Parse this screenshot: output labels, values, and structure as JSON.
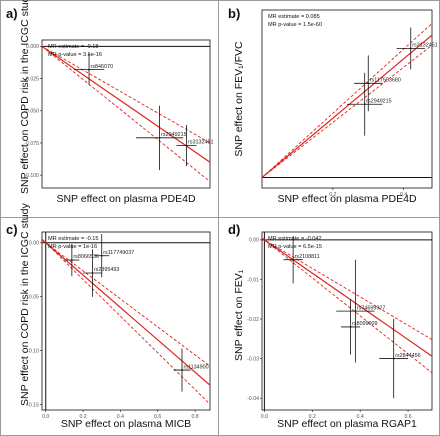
{
  "colors": {
    "fit": "#e0231a",
    "ci": "#e0231a",
    "error_bar": "#111111",
    "axis": "#111111",
    "tick": "#555555",
    "grid": "#9a9a9a"
  },
  "chart_data": [
    {
      "panel_label": "a)",
      "type": "scatter",
      "title": "",
      "xlabel": "SNP effect on plasma PDE4D",
      "ylabel": "SNP effect on COPD risk in the ICGC study",
      "xlim": [
        0,
        0.5
      ],
      "ylim": [
        -0.11,
        0.005
      ],
      "xticks": [],
      "xtick_labels": [],
      "yticks": [
        0,
        -0.025,
        -0.05,
        -0.075,
        -0.1
      ],
      "ytick_labels": [
        "0.000",
        "-0.025",
        "-0.050",
        "-0.075",
        "-0.100"
      ],
      "annotations": [
        "MR estimate = -0.18",
        "MR p-value = 3.6e-16"
      ],
      "fit": {
        "intercept": 0,
        "slope": -0.18,
        "ci_slopes": [
          -0.15,
          -0.21
        ]
      },
      "points": [
        {
          "label": "rs846070",
          "x": 0.14,
          "y": -0.018,
          "xerr": 0.045,
          "yerr": 0.012
        },
        {
          "label": "rs2949215",
          "x": 0.35,
          "y": -0.071,
          "xerr": 0.07,
          "yerr": 0.025
        },
        {
          "label": "rs3132451",
          "x": 0.43,
          "y": -0.077,
          "xerr": 0.03,
          "yerr": 0.016
        }
      ]
    },
    {
      "panel_label": "b)",
      "type": "scatter",
      "title": "",
      "xlabel": "SNP effect on plasma PDE4D",
      "ylabel": "SNP effect on FEV₁/FVC",
      "xlim": [
        0,
        0.48
      ],
      "ylim": [
        -0.003,
        0.048
      ],
      "xticks": [
        0.2,
        0.4
      ],
      "xtick_labels": [
        "0.2",
        "0.4"
      ],
      "yticks": [],
      "ytick_labels": [],
      "annotations": [
        "MR estimate = 0.085",
        "MR p-value = 1.5e-60"
      ],
      "fit": {
        "intercept": 0,
        "slope": 0.085,
        "ci_slopes": [
          0.079,
          0.092
        ]
      },
      "points": [
        {
          "label": "rs3132451",
          "x": 0.42,
          "y": 0.037,
          "xerr": 0.04,
          "yerr": 0.006
        },
        {
          "label": "rs117553680",
          "x": 0.3,
          "y": 0.027,
          "xerr": 0.04,
          "yerr": 0.008
        },
        {
          "label": "rs2949215",
          "x": 0.29,
          "y": 0.021,
          "xerr": 0.05,
          "yerr": 0.009
        }
      ]
    },
    {
      "panel_label": "c)",
      "type": "scatter",
      "title": "",
      "xlabel": "SNP effect on plasma MICB",
      "ylabel": "SNP effect on COPD risk in the ICGC study",
      "xlim": [
        -0.02,
        0.88
      ],
      "ylim": [
        -0.155,
        0.01
      ],
      "xticks": [
        0,
        0.2,
        0.4,
        0.6,
        0.8
      ],
      "xtick_labels": [
        "0.0",
        "0.2",
        "0.4",
        "0.6",
        "0.8"
      ],
      "yticks": [
        0,
        -0.05,
        -0.1,
        -0.15
      ],
      "ytick_labels": [
        "0.00",
        "-0.05",
        "-0.10",
        "-0.15"
      ],
      "annotations": [
        "MR estimate = -0.15",
        "MR p-value = 1e-16"
      ],
      "fit": {
        "intercept": 0,
        "slope": -0.15,
        "ci_slopes": [
          -0.13,
          -0.17
        ]
      },
      "points": [
        {
          "label": "rs117749037",
          "x": 0.3,
          "y": -0.012,
          "xerr": 0.04,
          "yerr": 0.02
        },
        {
          "label": "rs8066536",
          "x": 0.14,
          "y": -0.016,
          "xerr": 0.04,
          "yerr": 0.015
        },
        {
          "label": "rs2395493",
          "x": 0.25,
          "y": -0.028,
          "xerr": 0.05,
          "yerr": 0.022
        },
        {
          "label": "rs1134900",
          "x": 0.73,
          "y": -0.118,
          "xerr": 0.045,
          "yerr": 0.02
        }
      ]
    },
    {
      "panel_label": "d)",
      "type": "scatter",
      "title": "",
      "xlabel": "SNP effect on plasma RGAP1",
      "ylabel": "SNP effect on FEV₁",
      "xlim": [
        -0.01,
        0.7
      ],
      "ylim": [
        -0.043,
        0.002
      ],
      "xticks": [
        0,
        0.2,
        0.4,
        0.6
      ],
      "xtick_labels": [
        "0.0",
        "0.2",
        "0.4",
        "0.6"
      ],
      "yticks": [
        0,
        -0.01,
        -0.02,
        -0.03,
        -0.04
      ],
      "ytick_labels": [
        "0.00",
        "-0.01",
        "-0.02",
        "-0.03",
        "-0.04"
      ],
      "annotations": [
        "MR estimate = -0.042",
        "MR p-value = 6.5e-15"
      ],
      "fit": {
        "intercept": 0,
        "slope": -0.042,
        "ci_slopes": [
          -0.036,
          -0.048
        ]
      },
      "points": [
        {
          "label": "rs2108811",
          "x": 0.12,
          "y": -0.005,
          "xerr": 0.04,
          "yerr": 0.006
        },
        {
          "label": "rs74699927",
          "x": 0.38,
          "y": -0.018,
          "xerr": 0.08,
          "yerr": 0.013
        },
        {
          "label": "rs8099009",
          "x": 0.36,
          "y": -0.022,
          "xerr": 0.04,
          "yerr": 0.007
        },
        {
          "label": "rs2844456",
          "x": 0.54,
          "y": -0.03,
          "xerr": 0.06,
          "yerr": 0.01
        }
      ]
    }
  ]
}
